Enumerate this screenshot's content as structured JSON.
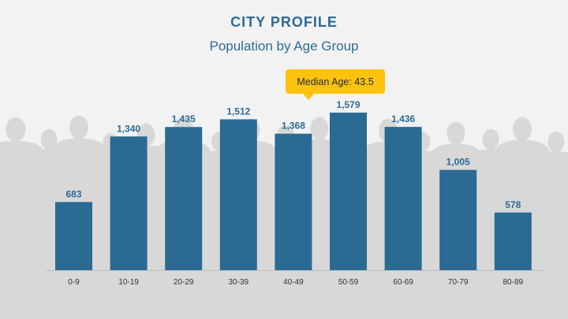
{
  "header": {
    "title": "CITY PROFILE",
    "subtitle": "Population by Age Group"
  },
  "callout": {
    "text": "Median Age: 43.5",
    "color": "#ffc20e"
  },
  "colors": {
    "bar": "#2a6a93",
    "label": "#2e6b95",
    "background": "#f2f2f2",
    "silhouette": "#d6d6d6"
  },
  "chart_data": {
    "type": "bar",
    "title": "Population by Age Group",
    "xlabel": "",
    "ylabel": "",
    "categories": [
      "0-9",
      "10-19",
      "20-29",
      "30-39",
      "40-49",
      "50-59",
      "60-69",
      "70-79",
      "80-89"
    ],
    "values": [
      683,
      1340,
      1435,
      1512,
      1368,
      1579,
      1436,
      1005,
      578
    ],
    "value_labels": [
      "683",
      "1,340",
      "1,435",
      "1,512",
      "1,368",
      "1,579",
      "1,436",
      "1,005",
      "578"
    ],
    "ylim": [
      0,
      1600
    ],
    "grid": false,
    "legend": "none",
    "annotations": [
      "Median Age: 43.5"
    ]
  }
}
